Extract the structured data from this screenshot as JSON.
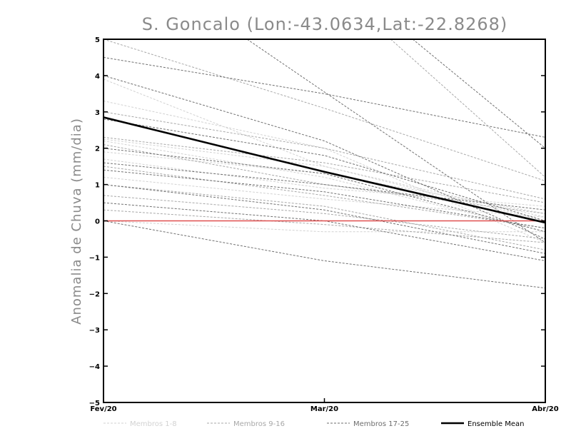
{
  "chart_data": {
    "type": "line",
    "title": "S. Goncalo (Lon:-43.0634,Lat:-22.8268)",
    "xlabel": "",
    "ylabel": "Anomalia de Chuva (mm/dia)",
    "categories": [
      "Fev/20",
      "Mar/20",
      "Abr/20"
    ],
    "ylim": [
      -5,
      5
    ],
    "yticks": [
      5,
      4,
      3,
      2,
      1,
      0,
      -1,
      -2,
      -3,
      -4,
      -5
    ],
    "zero_line_color": "#e05050",
    "series": [
      {
        "name": "Membros 1-8",
        "group": 1,
        "values": [
          2.25,
          1.5,
          0.0
        ]
      },
      {
        "name": "Membros 1-8",
        "group": 1,
        "values": [
          1.9,
          1.3,
          0.2
        ]
      },
      {
        "name": "Membros 1-8",
        "group": 1,
        "values": [
          3.9,
          1.5,
          0.1
        ]
      },
      {
        "name": "Membros 1-8",
        "group": 1,
        "values": [
          2.2,
          1.2,
          -0.3
        ]
      },
      {
        "name": "Membros 1-8",
        "group": 1,
        "values": [
          1.7,
          0.9,
          0.4
        ]
      },
      {
        "name": "Membros 1-8",
        "group": 1,
        "values": [
          3.3,
          2.0,
          -0.6
        ]
      },
      {
        "name": "Membros 1-8",
        "group": 1,
        "values": [
          0.0,
          -0.3,
          -0.3
        ]
      },
      {
        "name": "Membros 1-8",
        "group": 1,
        "values": [
          1.2,
          0.6,
          0.1
        ]
      },
      {
        "name": "Membros 9-16",
        "group": 2,
        "values": [
          5.0,
          3.1,
          1.1
        ]
      },
      {
        "name": "Membros 9-16",
        "group": 2,
        "values": [
          2.3,
          1.6,
          0.5
        ]
      },
      {
        "name": "Membros 9-16",
        "group": 2,
        "values": [
          1.5,
          0.7,
          -0.2
        ]
      },
      {
        "name": "Membros 9-16",
        "group": 2,
        "values": [
          0.7,
          0.2,
          -0.5
        ]
      },
      {
        "name": "Membros 9-16",
        "group": 2,
        "values": [
          3.0,
          2.0,
          0.6
        ]
      },
      {
        "name": "Membros 9-16",
        "group": 2,
        "values": [
          1.0,
          0.4,
          -0.8
        ]
      },
      {
        "name": "Membros 9-16",
        "group": 2,
        "values": [
          2.1,
          1.0,
          0.2
        ]
      },
      {
        "name": "Membros 9-16",
        "group": 2,
        "values": [
          0.3,
          -0.1,
          -0.6
        ]
      },
      {
        "name": "Membros 17-25",
        "group": 3,
        "values": [
          4.5,
          3.5,
          2.3
        ]
      },
      {
        "name": "Membros 17-25",
        "group": 3,
        "values": [
          4.0,
          2.2,
          -0.5
        ]
      },
      {
        "name": "Membros 17-25",
        "group": 3,
        "values": [
          1.4,
          0.8,
          -0.2
        ]
      },
      {
        "name": "Membros 17-25",
        "group": 3,
        "values": [
          1.0,
          0.3,
          -0.9
        ]
      },
      {
        "name": "Membros 17-25",
        "group": 3,
        "values": [
          0.0,
          -1.1,
          -1.85
        ]
      },
      {
        "name": "Membros 17-25",
        "group": 3,
        "values": [
          2.8,
          1.8,
          0.0
        ]
      },
      {
        "name": "Membros 17-25",
        "group": 3,
        "values": [
          1.6,
          1.0,
          0.3
        ]
      },
      {
        "name": "Membros 17-25",
        "group": 3,
        "values": [
          0.5,
          0.0,
          -1.1
        ]
      },
      {
        "name": "Membros 17-25",
        "group": 3,
        "values": [
          2.0,
          1.3,
          -0.3
        ]
      }
    ],
    "ensemble_mean": {
      "name": "Ensemble Mean",
      "values": [
        2.85,
        1.35,
        -0.05
      ]
    },
    "steep_members": [
      {
        "group": 2,
        "x": [
          1.3,
          2.0
        ],
        "values": [
          5.0,
          1.2
        ]
      },
      {
        "group": 3,
        "x": [
          0.65,
          2.0
        ],
        "values": [
          5.0,
          -0.6
        ]
      },
      {
        "group": 3,
        "x": [
          1.4,
          2.0
        ],
        "values": [
          5.0,
          2.0
        ]
      }
    ],
    "legend": [
      {
        "label": "Membros 1-8",
        "color": "#d2d2d2",
        "dash": true
      },
      {
        "label": "Membros 9-16",
        "color": "#a8a8a8",
        "dash": true
      },
      {
        "label": "Membros 17-25",
        "color": "#6e6e6e",
        "dash": true
      },
      {
        "label": "Ensemble Mean",
        "color": "#000000",
        "dash": false
      }
    ],
    "group_colors": {
      "1": "#d2d2d2",
      "2": "#a8a8a8",
      "3": "#707070"
    }
  }
}
